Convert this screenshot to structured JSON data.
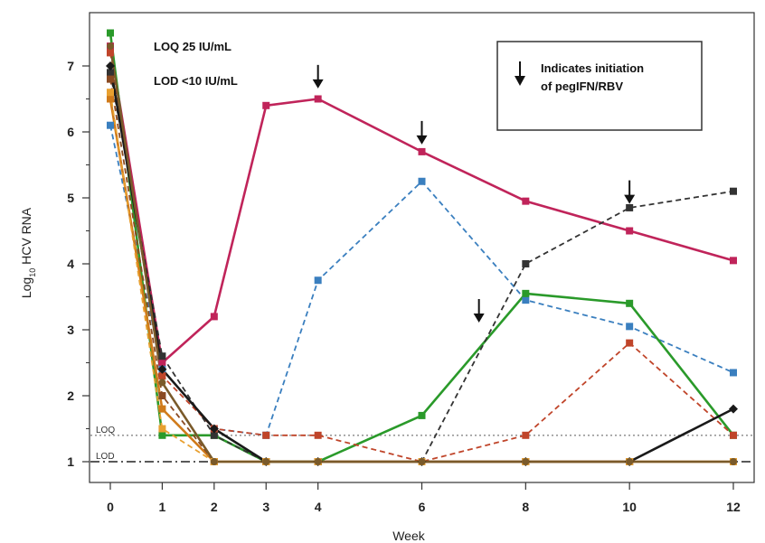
{
  "chart_data": {
    "type": "line",
    "xlabel": "Week",
    "ylabel": "Log10 HCV RNA",
    "ylabel_main": "Log",
    "ylabel_sub": "10",
    "ylabel_rest": " HCV RNA",
    "xlim": [
      0,
      12
    ],
    "ylim": [
      1,
      7.5
    ],
    "x_ticks": [
      0,
      1,
      2,
      3,
      4,
      6,
      8,
      10,
      12
    ],
    "y_ticks": [
      1,
      2,
      3,
      4,
      5,
      6,
      7
    ],
    "annotations": [
      "LOQ 25 IU/mL",
      "LOD <10 IU/mL"
    ],
    "legend": {
      "text_line1": "Indicates initiation",
      "text_line2": "of pegIFN/RBV",
      "placement": "top-right"
    },
    "reference_lines": [
      {
        "label": "LOQ",
        "y": 1.4,
        "style": "dotted",
        "color": "#999999"
      },
      {
        "label": "LOD",
        "y": 1.0,
        "style": "dashdot",
        "color": "#222222"
      }
    ],
    "arrows": [
      {
        "x": 4,
        "y": 6.55
      },
      {
        "x": 6,
        "y": 5.7
      },
      {
        "x": 7.1,
        "y": 3.0
      },
      {
        "x": 10,
        "y": 4.8
      }
    ],
    "series": [
      {
        "color": "#c0245a",
        "dash": "solid",
        "marker": "square",
        "points": [
          [
            0,
            7.3
          ],
          [
            1,
            2.5
          ],
          [
            2,
            3.2
          ],
          [
            3,
            6.4
          ],
          [
            4,
            6.5
          ],
          [
            6,
            5.7
          ],
          [
            8,
            4.95
          ],
          [
            10,
            4.5
          ],
          [
            12,
            4.05
          ]
        ]
      },
      {
        "color": "#3a7fbf",
        "dash": "dashed",
        "marker": "square",
        "points": [
          [
            0,
            6.1
          ],
          [
            1,
            2.4
          ],
          [
            2,
            1.5
          ],
          [
            3,
            1.4
          ],
          [
            4,
            3.75
          ],
          [
            6,
            5.25
          ],
          [
            8,
            3.45
          ],
          [
            10,
            3.05
          ],
          [
            12,
            2.35
          ]
        ]
      },
      {
        "color": "#2a9a2a",
        "dash": "solid",
        "marker": "square",
        "points": [
          [
            0,
            7.5
          ],
          [
            1,
            1.4
          ],
          [
            2,
            1.4
          ],
          [
            3,
            1.0
          ],
          [
            4,
            1.0
          ],
          [
            6,
            1.7
          ],
          [
            8,
            3.55
          ],
          [
            10,
            3.4
          ],
          [
            12,
            1.4
          ]
        ]
      },
      {
        "color": "#333333",
        "dash": "dashed",
        "marker": "square",
        "points": [
          [
            0,
            6.9
          ],
          [
            1,
            2.6
          ],
          [
            2,
            1.4
          ],
          [
            3,
            1.0
          ],
          [
            4,
            1.0
          ],
          [
            6,
            1.0
          ],
          [
            8,
            4.0
          ],
          [
            10,
            4.85
          ],
          [
            12,
            5.1
          ]
        ]
      },
      {
        "color": "#c0452a",
        "dash": "dashed",
        "marker": "square",
        "points": [
          [
            0,
            7.2
          ],
          [
            1,
            2.3
          ],
          [
            2,
            1.5
          ],
          [
            3,
            1.4
          ],
          [
            4,
            1.4
          ],
          [
            6,
            1.0
          ],
          [
            8,
            1.4
          ],
          [
            10,
            2.8
          ],
          [
            12,
            1.4
          ]
        ]
      },
      {
        "color": "#1a1a1a",
        "dash": "solid",
        "marker": "diamond",
        "points": [
          [
            0,
            7.0
          ],
          [
            1,
            2.4
          ],
          [
            2,
            1.5
          ],
          [
            3,
            1.0
          ],
          [
            4,
            1.0
          ],
          [
            6,
            1.0
          ],
          [
            8,
            1.0
          ],
          [
            10,
            1.0
          ],
          [
            12,
            1.8
          ]
        ]
      },
      {
        "color": "#d07a1a",
        "dash": "solid",
        "marker": "square",
        "points": [
          [
            0,
            6.5
          ],
          [
            1,
            1.8
          ],
          [
            2,
            1.0
          ],
          [
            3,
            1.0
          ],
          [
            4,
            1.0
          ],
          [
            6,
            1.0
          ],
          [
            8,
            1.0
          ],
          [
            10,
            1.0
          ],
          [
            12,
            1.0
          ]
        ]
      },
      {
        "color": "#8a4a22",
        "dash": "dashed",
        "marker": "square",
        "points": [
          [
            0,
            6.8
          ],
          [
            1,
            2.0
          ],
          [
            2,
            1.0
          ],
          [
            3,
            1.0
          ],
          [
            4,
            1.0
          ],
          [
            6,
            1.0
          ],
          [
            8,
            1.0
          ],
          [
            10,
            1.0
          ],
          [
            12,
            1.0
          ]
        ]
      },
      {
        "color": "#e8a030",
        "dash": "dashed",
        "marker": "square",
        "points": [
          [
            0,
            6.6
          ],
          [
            1,
            1.5
          ],
          [
            2,
            1.0
          ],
          [
            3,
            1.0
          ],
          [
            4,
            1.0
          ],
          [
            6,
            1.0
          ],
          [
            8,
            1.0
          ],
          [
            10,
            1.0
          ],
          [
            12,
            1.0
          ]
        ]
      },
      {
        "color": "#7a5a2a",
        "dash": "solid",
        "marker": "circle",
        "points": [
          [
            0,
            7.3
          ],
          [
            1,
            2.2
          ],
          [
            2,
            1.0
          ],
          [
            3,
            1.0
          ],
          [
            4,
            1.0
          ],
          [
            6,
            1.0
          ],
          [
            8,
            1.0
          ],
          [
            10,
            1.0
          ],
          [
            12,
            1.0
          ]
        ]
      }
    ]
  }
}
